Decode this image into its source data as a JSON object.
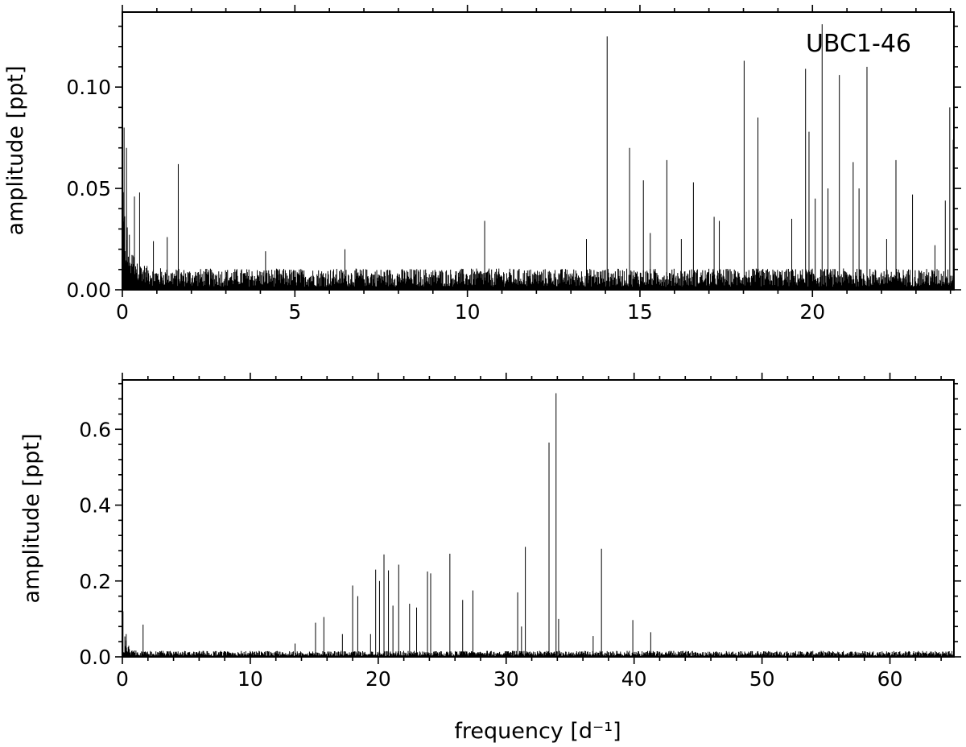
{
  "figure": {
    "top_panel": {
      "label": "UBC1-46",
      "ylabel": "amplitude [ppt]",
      "xlabel": ""
    },
    "bottom_panel": {
      "label": "",
      "ylabel": "amplitude [ppt]",
      "xlabel": "frequency [d⁻¹]"
    }
  },
  "chart_data": [
    {
      "type": "line",
      "title": "UBC1-46",
      "xlabel": "",
      "ylabel": "amplitude [ppt]",
      "xlim": [
        0,
        24.1
      ],
      "ylim": [
        0,
        0.137
      ],
      "xticks": [
        0,
        5,
        10,
        15,
        20
      ],
      "xtick_labels": [
        "0",
        "5",
        "10",
        "15",
        "20"
      ],
      "yticks": [
        0.0,
        0.05,
        0.1
      ],
      "ytick_labels": [
        "0.00",
        "0.05",
        "0.10"
      ],
      "noise": {
        "level": 0.006,
        "low_freq_excess": 0.045,
        "low_freq_scale": 0.25
      },
      "peaks": [
        {
          "x": 0.05,
          "y": 0.08
        },
        {
          "x": 0.12,
          "y": 0.07
        },
        {
          "x": 0.35,
          "y": 0.046
        },
        {
          "x": 0.5,
          "y": 0.048
        },
        {
          "x": 0.9,
          "y": 0.024
        },
        {
          "x": 1.3,
          "y": 0.026
        },
        {
          "x": 1.62,
          "y": 0.062
        },
        {
          "x": 4.15,
          "y": 0.019
        },
        {
          "x": 6.45,
          "y": 0.02
        },
        {
          "x": 10.5,
          "y": 0.034
        },
        {
          "x": 13.45,
          "y": 0.025
        },
        {
          "x": 14.05,
          "y": 0.125
        },
        {
          "x": 14.7,
          "y": 0.07
        },
        {
          "x": 15.1,
          "y": 0.054
        },
        {
          "x": 15.3,
          "y": 0.028
        },
        {
          "x": 15.78,
          "y": 0.064
        },
        {
          "x": 16.2,
          "y": 0.025
        },
        {
          "x": 16.55,
          "y": 0.053
        },
        {
          "x": 17.15,
          "y": 0.036
        },
        {
          "x": 17.3,
          "y": 0.034
        },
        {
          "x": 18.02,
          "y": 0.113
        },
        {
          "x": 18.42,
          "y": 0.085
        },
        {
          "x": 19.4,
          "y": 0.035
        },
        {
          "x": 19.8,
          "y": 0.109
        },
        {
          "x": 19.9,
          "y": 0.078
        },
        {
          "x": 20.08,
          "y": 0.045
        },
        {
          "x": 20.28,
          "y": 0.131
        },
        {
          "x": 20.45,
          "y": 0.05
        },
        {
          "x": 20.78,
          "y": 0.106
        },
        {
          "x": 21.18,
          "y": 0.063
        },
        {
          "x": 21.35,
          "y": 0.05
        },
        {
          "x": 21.58,
          "y": 0.11
        },
        {
          "x": 22.15,
          "y": 0.025
        },
        {
          "x": 22.42,
          "y": 0.064
        },
        {
          "x": 22.9,
          "y": 0.047
        },
        {
          "x": 23.55,
          "y": 0.022
        },
        {
          "x": 23.85,
          "y": 0.044
        },
        {
          "x": 23.98,
          "y": 0.09
        },
        {
          "x": 24.08,
          "y": 0.074
        }
      ]
    },
    {
      "type": "line",
      "title": "",
      "xlabel": "frequency [d⁻¹]",
      "ylabel": "amplitude [ppt]",
      "xlim": [
        0,
        65
      ],
      "ylim": [
        0,
        0.73
      ],
      "xticks": [
        0,
        10,
        20,
        30,
        40,
        50,
        60
      ],
      "xtick_labels": [
        "0",
        "10",
        "20",
        "30",
        "40",
        "50",
        "60"
      ],
      "yticks": [
        0.0,
        0.2,
        0.4,
        0.6
      ],
      "ytick_labels": [
        "0.0",
        "0.2",
        "0.4",
        "0.6"
      ],
      "noise": {
        "level": 0.009,
        "low_freq_excess": 0.1,
        "low_freq_scale": 0.3
      },
      "peaks": [
        {
          "x": 0.05,
          "y": 0.12
        },
        {
          "x": 0.3,
          "y": 0.06
        },
        {
          "x": 1.62,
          "y": 0.085
        },
        {
          "x": 13.5,
          "y": 0.035
        },
        {
          "x": 15.1,
          "y": 0.09
        },
        {
          "x": 15.75,
          "y": 0.105
        },
        {
          "x": 17.2,
          "y": 0.06
        },
        {
          "x": 18.0,
          "y": 0.188
        },
        {
          "x": 18.4,
          "y": 0.16
        },
        {
          "x": 19.4,
          "y": 0.06
        },
        {
          "x": 19.8,
          "y": 0.23
        },
        {
          "x": 20.1,
          "y": 0.2
        },
        {
          "x": 20.45,
          "y": 0.27
        },
        {
          "x": 20.8,
          "y": 0.228
        },
        {
          "x": 21.15,
          "y": 0.135
        },
        {
          "x": 21.6,
          "y": 0.243
        },
        {
          "x": 22.45,
          "y": 0.14
        },
        {
          "x": 23.0,
          "y": 0.13
        },
        {
          "x": 23.85,
          "y": 0.225
        },
        {
          "x": 24.1,
          "y": 0.22
        },
        {
          "x": 25.6,
          "y": 0.272
        },
        {
          "x": 26.6,
          "y": 0.15
        },
        {
          "x": 27.4,
          "y": 0.175
        },
        {
          "x": 30.9,
          "y": 0.17
        },
        {
          "x": 31.2,
          "y": 0.08
        },
        {
          "x": 31.5,
          "y": 0.29
        },
        {
          "x": 33.35,
          "y": 0.565
        },
        {
          "x": 33.9,
          "y": 0.695
        },
        {
          "x": 34.1,
          "y": 0.1
        },
        {
          "x": 37.45,
          "y": 0.285
        },
        {
          "x": 36.8,
          "y": 0.055
        },
        {
          "x": 39.9,
          "y": 0.097
        },
        {
          "x": 41.3,
          "y": 0.065
        }
      ]
    }
  ]
}
